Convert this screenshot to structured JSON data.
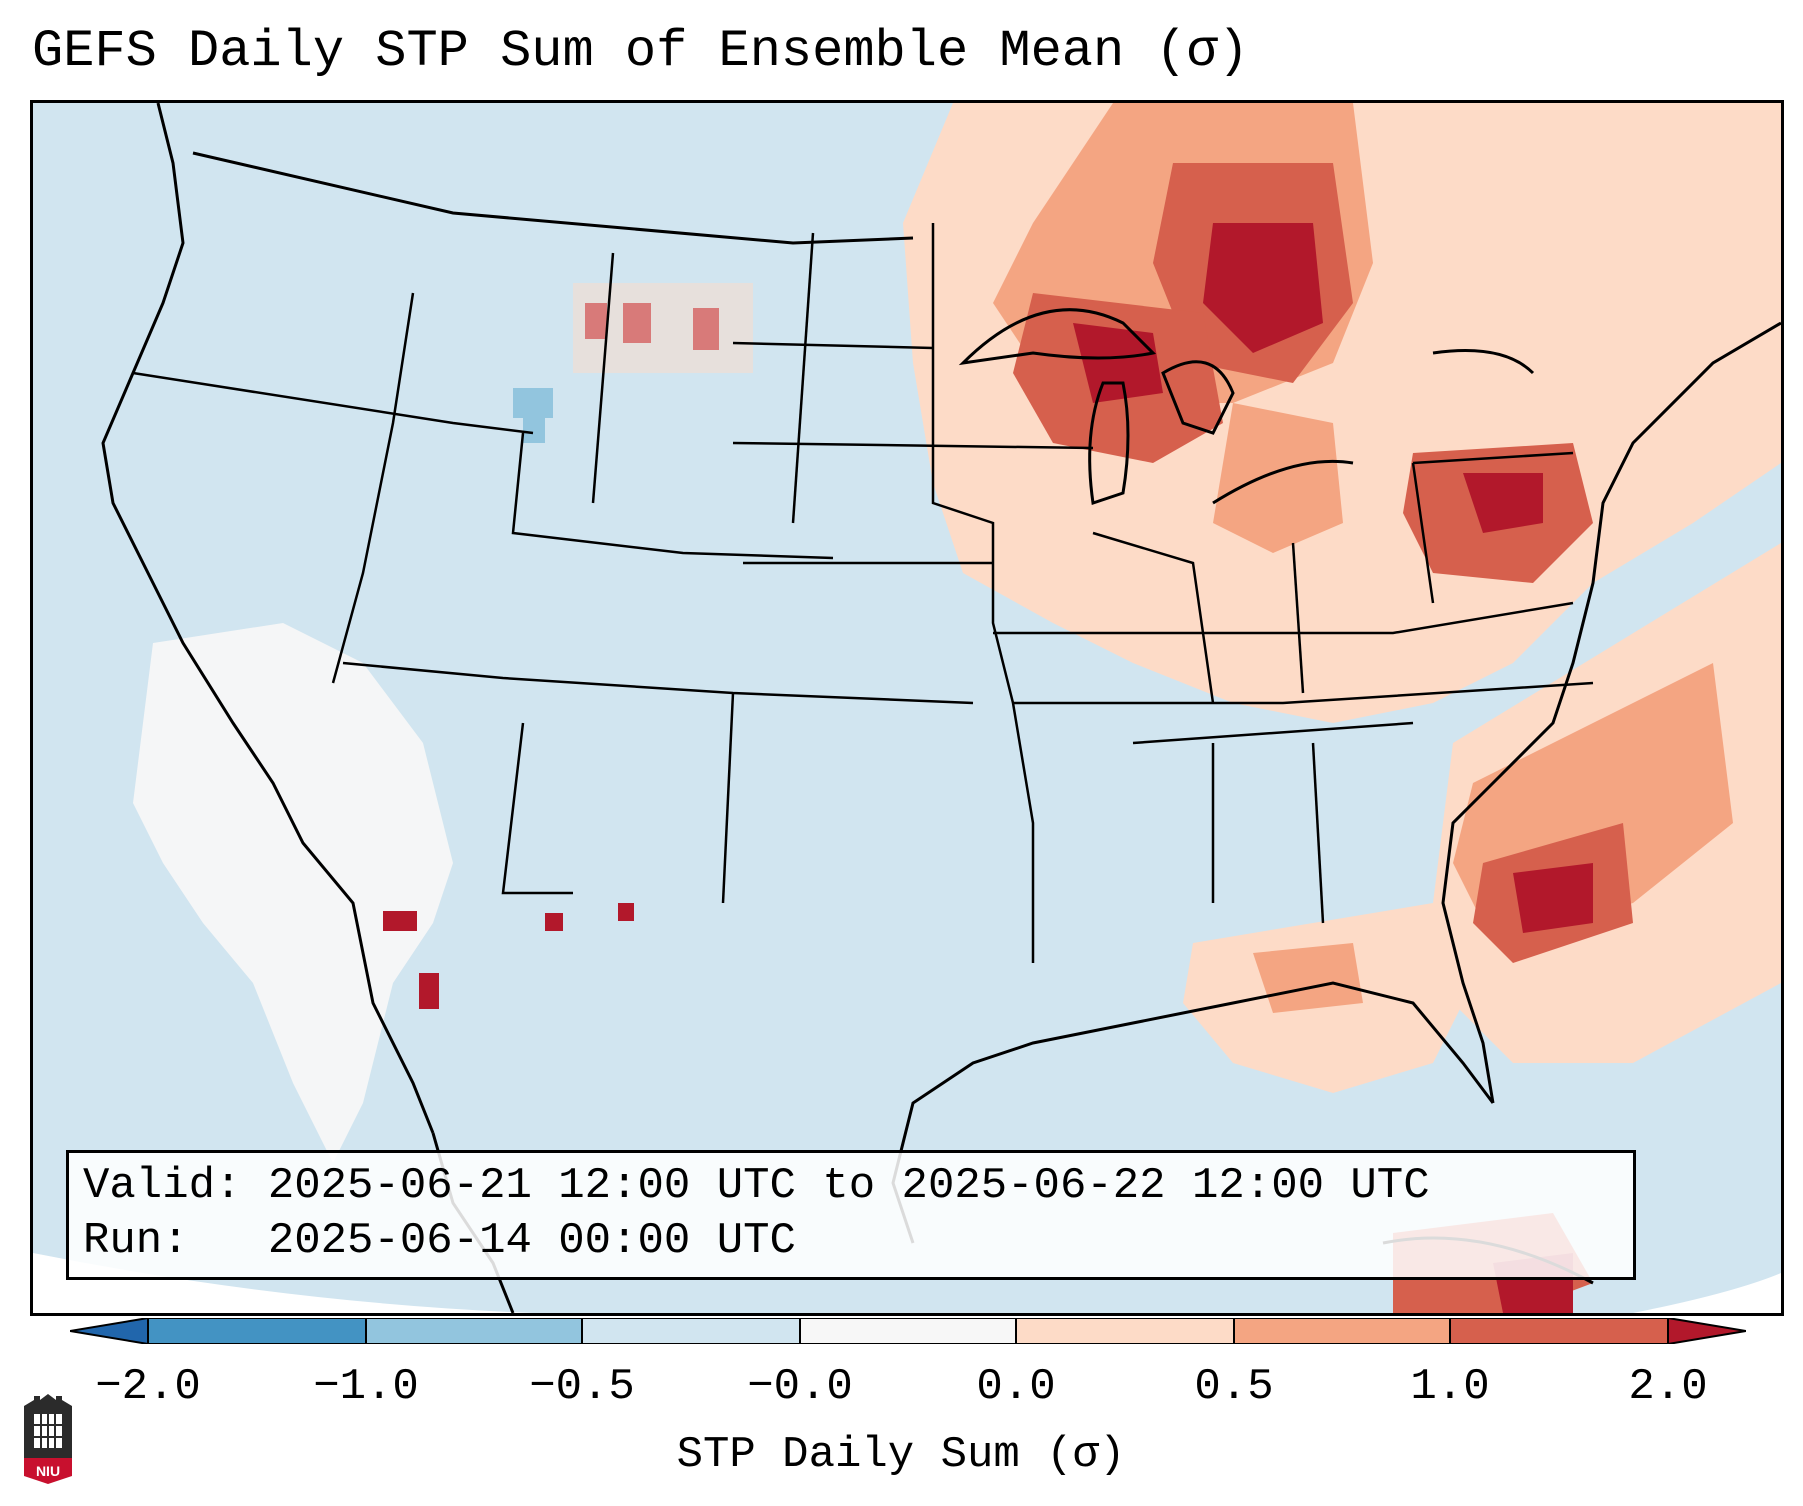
{
  "title": "GEFS Daily STP Sum of Ensemble Mean (σ)",
  "info": {
    "valid": "Valid: 2025-06-21 12:00 UTC to 2025-06-22 12:00 UTC",
    "run": "Run:   2025-06-14 00:00 UTC"
  },
  "colorbar": {
    "label": "STP Daily Sum (σ)",
    "ticks": [
      "−2.0",
      "−1.0",
      "−0.5",
      "−0.0",
      "0.0",
      "0.5",
      "1.0",
      "2.0"
    ],
    "bins": [
      {
        "range": "< -2.0",
        "color": "#2166ac"
      },
      {
        "range": "-2.0 to -1.0",
        "color": "#4393c3"
      },
      {
        "range": "-1.0 to -0.5",
        "color": "#92c5de"
      },
      {
        "range": "-0.5 to -0.0",
        "color": "#d1e5f0"
      },
      {
        "range": "-0.0 to 0.0",
        "color": "#f7f7f7"
      },
      {
        "range": "0.0 to 0.5",
        "color": "#fddbc7"
      },
      {
        "range": "0.5 to 1.0",
        "color": "#f4a582"
      },
      {
        "range": "1.0 to 2.0",
        "color": "#d6604d"
      },
      {
        "range": "> 2.0",
        "color": "#b2182b"
      }
    ]
  },
  "map": {
    "projection": "Lambert Conformal, CONUS with state boundaries",
    "anomaly_regions": [
      {
        "region": "Upper Midwest / Great Lakes / Ontario",
        "category": "1.0 to 2.0"
      },
      {
        "region": "Pennsylvania / New York",
        "category": "1.0 to 2.0"
      },
      {
        "region": "Western Atlantic off Carolinas",
        "category": "1.0 to 2.0"
      },
      {
        "region": "Northern Plains (MT/ND)",
        "category": "> 2.0"
      },
      {
        "region": "Gulf Coast / Florida",
        "category": "0.0 to 0.5"
      },
      {
        "region": "Southwest / Baja California",
        "category": "-0.0 to 0.0"
      },
      {
        "region": "Idaho / Wyoming",
        "category": "-1.0 to -0.5"
      }
    ]
  },
  "logo_text": "NIU"
}
